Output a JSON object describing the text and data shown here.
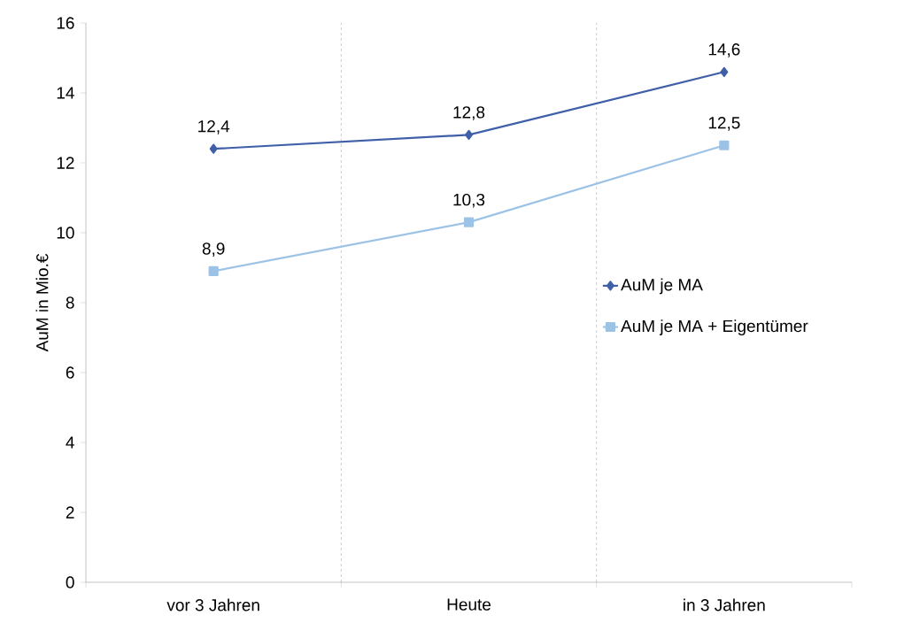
{
  "chart_data": {
    "type": "line",
    "ylabel": "AuM in Mio.€",
    "categories": [
      "vor 3 Jahren",
      "Heute",
      "in 3 Jahren"
    ],
    "series": [
      {
        "name": "AuM je MA",
        "color": "#3f5fa9",
        "marker": "diamond",
        "values": [
          12.4,
          12.8,
          14.6
        ],
        "value_labels": [
          "12,4",
          "12,8",
          "14,6"
        ]
      },
      {
        "name": "AuM je MA + Eigentümer",
        "color": "#9cc3e6",
        "marker": "square",
        "values": [
          8.9,
          10.3,
          12.5
        ],
        "value_labels": [
          "8,9",
          "10,3",
          "12,5"
        ]
      }
    ],
    "ylim": [
      0,
      16
    ],
    "yticks": [
      0,
      2,
      4,
      6,
      8,
      10,
      12,
      14,
      16
    ],
    "grid": "x",
    "legend": "right"
  }
}
